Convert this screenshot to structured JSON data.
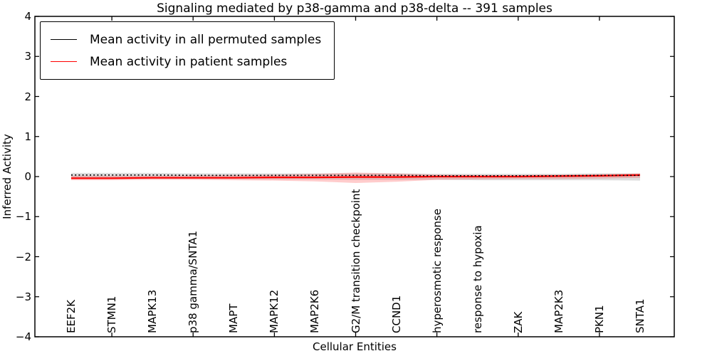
{
  "chart_data": {
    "type": "line",
    "title": "Signaling mediated by p38-gamma and p38-delta -- 391 samples",
    "xlabel": "Cellular Entities",
    "ylabel": "Inferred Activity",
    "ylim": [
      -4,
      4
    ],
    "yticks": [
      4,
      3,
      2,
      1,
      0,
      -1,
      -2,
      -3,
      -4
    ],
    "ytick_labels": [
      "4",
      "3",
      "2",
      "1",
      "0",
      "−1",
      "−2",
      "−3",
      "−4"
    ],
    "grid": false,
    "legend_position": "upper left",
    "categories": [
      "EEF2K",
      "STMN1",
      "MAPK13",
      "p38 gamma/SNTA1",
      "MAPT",
      "MAPK12",
      "MAP2K6",
      "G2/M transition checkpoint",
      "CCND1",
      "hyperosmotic response",
      "response to hypoxia",
      "ZAK",
      "MAP2K3",
      "PKN1",
      "SNTA1"
    ],
    "series": [
      {
        "name": "Mean activity in all permuted samples",
        "color": "#000000",
        "style": "dotted",
        "values": [
          0.04,
          0.04,
          0.04,
          0.03,
          0.03,
          0.03,
          0.03,
          0.03,
          0.03,
          0.02,
          0.02,
          0.02,
          0.02,
          0.03,
          0.03
        ],
        "band_upper": [
          0.09,
          0.09,
          0.09,
          0.08,
          0.08,
          0.08,
          0.08,
          0.08,
          0.08,
          0.07,
          0.07,
          0.07,
          0.07,
          0.08,
          0.08
        ],
        "band_lower": [
          -0.06,
          -0.06,
          -0.06,
          -0.06,
          -0.06,
          -0.07,
          -0.07,
          -0.08,
          -0.08,
          -0.08,
          -0.09,
          -0.09,
          -0.09,
          -0.09,
          -0.1
        ],
        "band_color": "rgba(120,120,120,0.25)"
      },
      {
        "name": "Mean activity in patient samples",
        "color": "#ff0000",
        "style": "solid",
        "values": [
          -0.04,
          -0.04,
          -0.03,
          -0.03,
          -0.03,
          -0.02,
          -0.02,
          -0.01,
          -0.01,
          0.0,
          0.0,
          0.0,
          0.01,
          0.02,
          0.04
        ],
        "band_upper": [
          0.02,
          0.02,
          0.02,
          0.03,
          0.04,
          0.05,
          0.07,
          0.1,
          0.08,
          0.05,
          0.04,
          0.04,
          0.05,
          0.06,
          0.08
        ],
        "band_lower": [
          -0.09,
          -0.09,
          -0.08,
          -0.08,
          -0.09,
          -0.1,
          -0.12,
          -0.16,
          -0.13,
          -0.08,
          -0.07,
          -0.06,
          -0.06,
          -0.05,
          -0.03
        ],
        "band_color": "rgba(255,0,0,0.20)"
      }
    ]
  }
}
